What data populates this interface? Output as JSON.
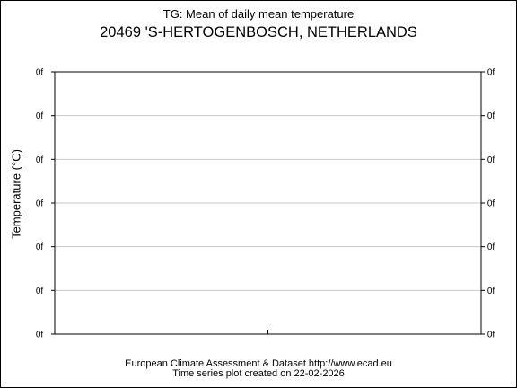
{
  "title_line1": "TG: Mean of daily mean temperature",
  "title_line2": "20469 'S-HERTOGENBOSCH, NETHERLANDS",
  "footer_line1": "European Climate Assessment & Dataset  http://www.ecad.eu",
  "footer_line2": "Time series plot created on 22-02-2026",
  "colors": {
    "frame": "#000000",
    "grid": "#c8c8c8",
    "background": "#ffffff"
  },
  "chart_data": {
    "type": "line",
    "ylabel": "Temperature (°C)",
    "xlabel": "",
    "y_tick_labels": [
      "0f",
      "0f",
      "0f",
      "0f",
      "0f",
      "0f",
      "0f"
    ],
    "y_tick_labels_right": [
      "0f",
      "0f",
      "0f",
      "0f",
      "0f",
      "0f",
      "0f"
    ],
    "grid": true,
    "series": []
  }
}
